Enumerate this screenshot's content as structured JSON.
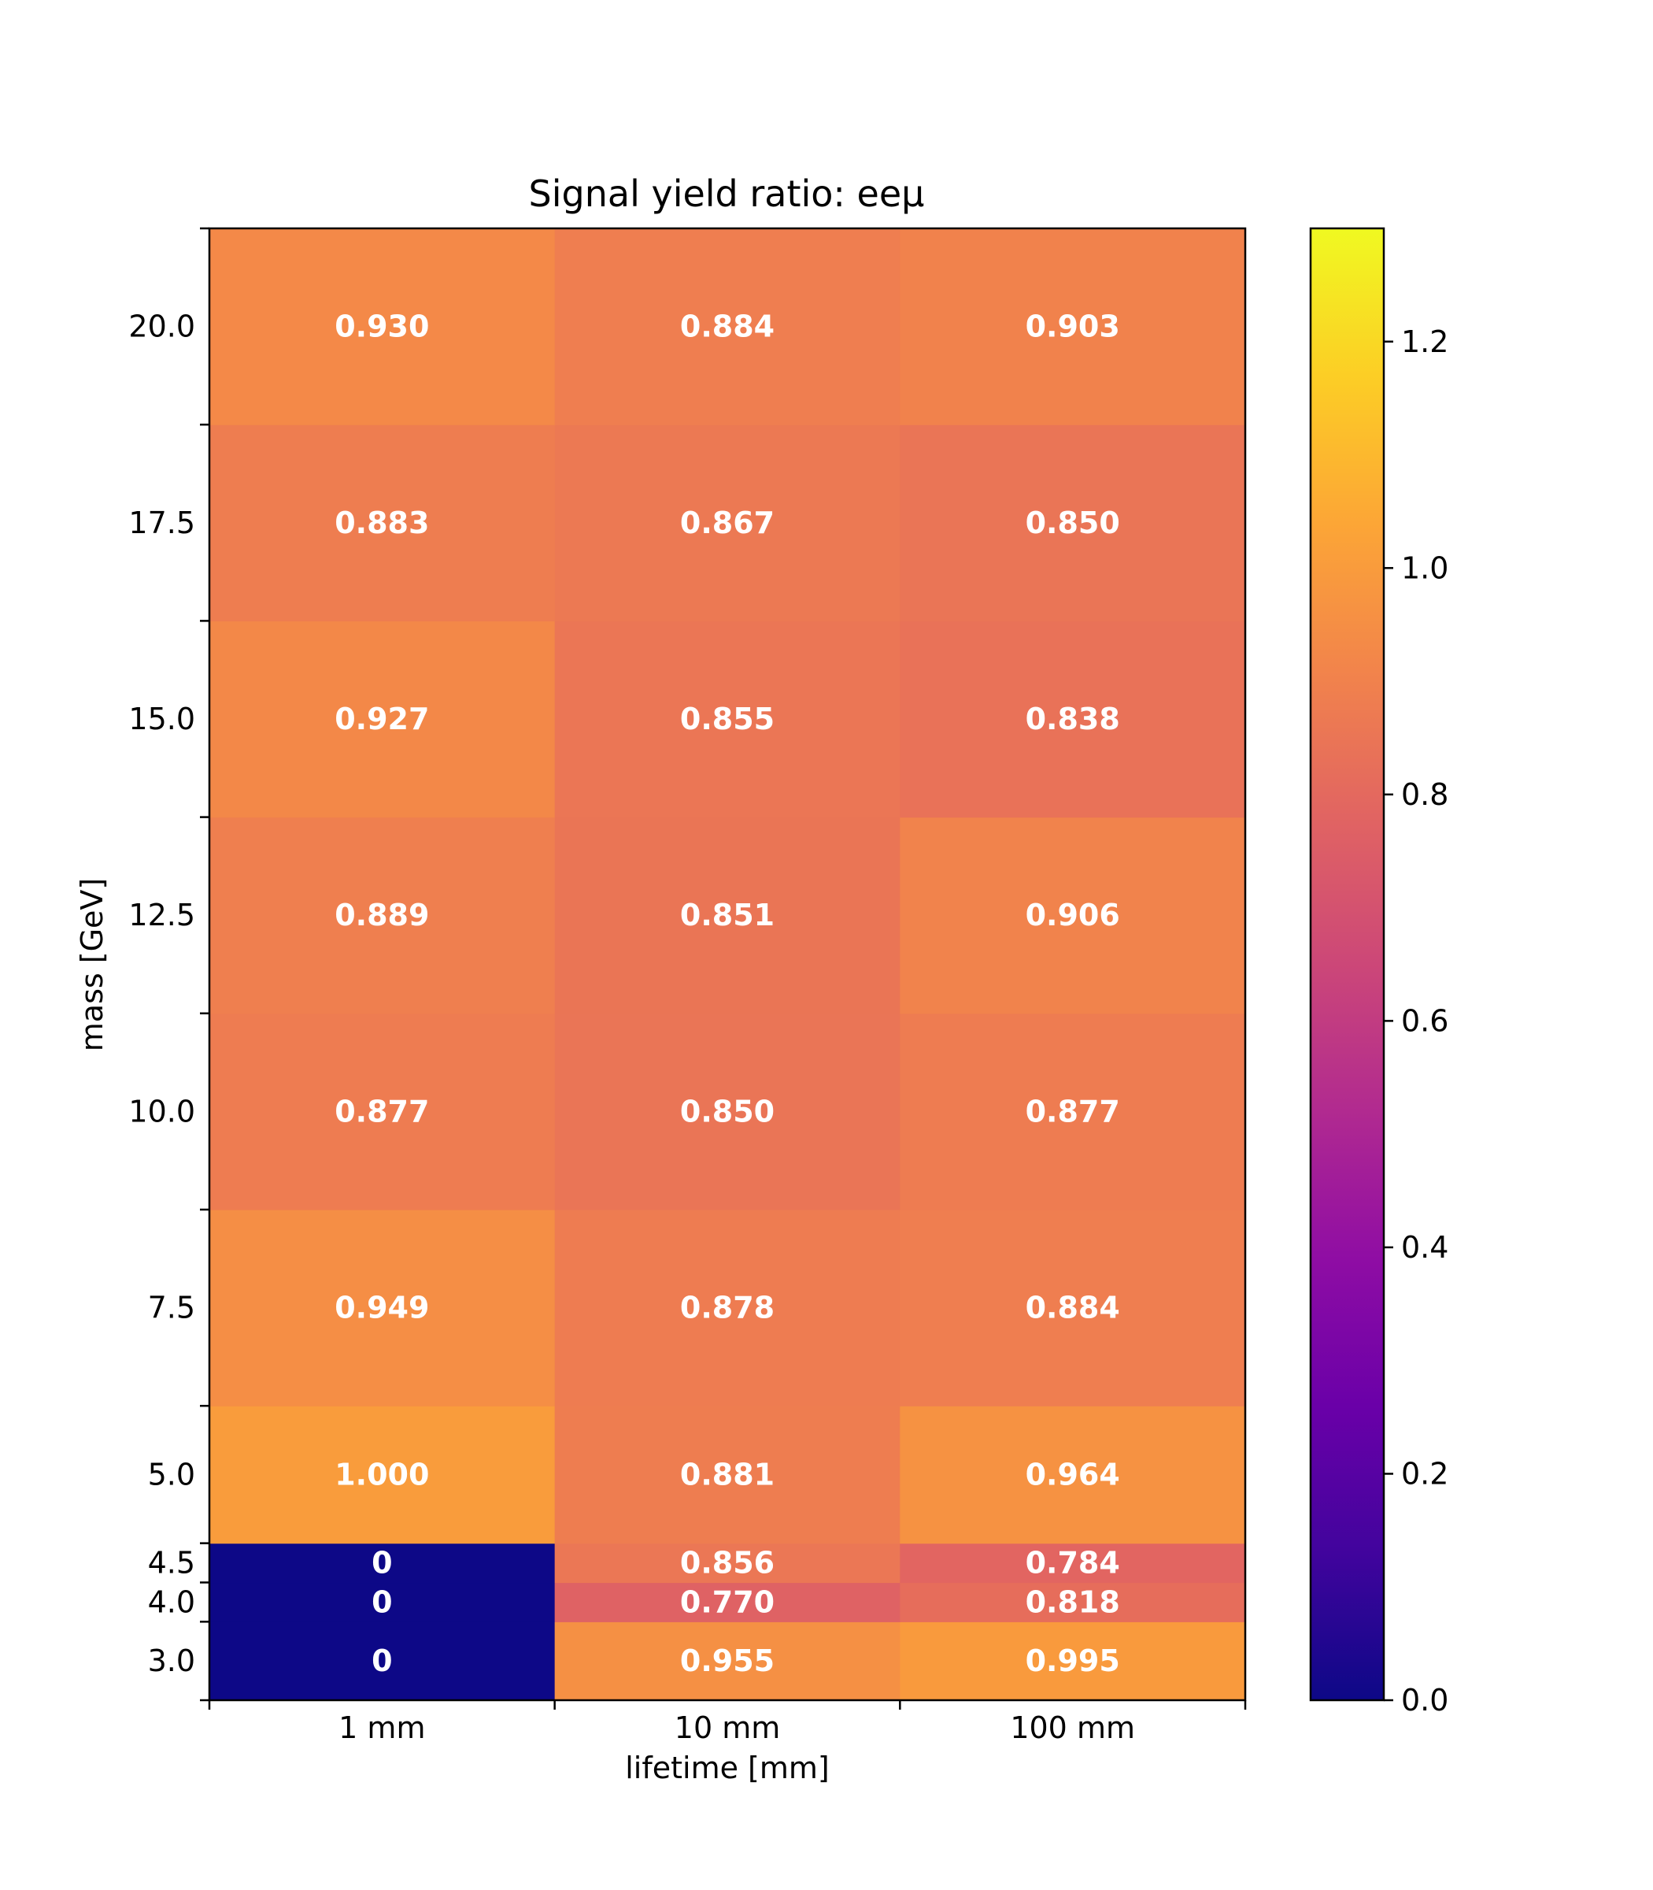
{
  "chart_data": {
    "type": "heatmap",
    "title": "Signal yield ratio: eeμ",
    "xlabel": "lifetime [mm]",
    "ylabel": "mass [GeV]",
    "x_categories": [
      "1 mm",
      "10 mm",
      "100 mm"
    ],
    "y_categories": [
      "3.0",
      "4.0",
      "4.5",
      "5.0",
      "7.5",
      "10.0",
      "12.5",
      "15.0",
      "17.5",
      "20.0"
    ],
    "y_bin_edges": [
      2.5,
      3.5,
      4.0,
      4.5,
      6.25,
      8.75,
      11.25,
      13.75,
      16.25,
      18.75,
      21.25
    ],
    "values": [
      [
        0,
        0.955,
        0.995
      ],
      [
        0,
        0.77,
        0.818
      ],
      [
        0,
        0.856,
        0.784
      ],
      [
        1.0,
        0.881,
        0.964
      ],
      [
        0.949,
        0.878,
        0.884
      ],
      [
        0.877,
        0.85,
        0.877
      ],
      [
        0.889,
        0.851,
        0.906
      ],
      [
        0.927,
        0.855,
        0.838
      ],
      [
        0.883,
        0.867,
        0.85
      ],
      [
        0.93,
        0.884,
        0.903
      ]
    ],
    "value_labels": [
      [
        "0",
        "0.955",
        "0.995"
      ],
      [
        "0",
        "0.770",
        "0.818"
      ],
      [
        "0",
        "0.856",
        "0.784"
      ],
      [
        "1.000",
        "0.881",
        "0.964"
      ],
      [
        "0.949",
        "0.878",
        "0.884"
      ],
      [
        "0.877",
        "0.850",
        "0.877"
      ],
      [
        "0.889",
        "0.851",
        "0.906"
      ],
      [
        "0.927",
        "0.855",
        "0.838"
      ],
      [
        "0.883",
        "0.867",
        "0.850"
      ],
      [
        "0.930",
        "0.884",
        "0.903"
      ]
    ],
    "colorbar": {
      "colormap": "plasma",
      "range": [
        0.0,
        1.3
      ],
      "ticks": [
        "0.0",
        "0.2",
        "0.4",
        "0.6",
        "0.8",
        "1.0",
        "1.2"
      ]
    }
  }
}
